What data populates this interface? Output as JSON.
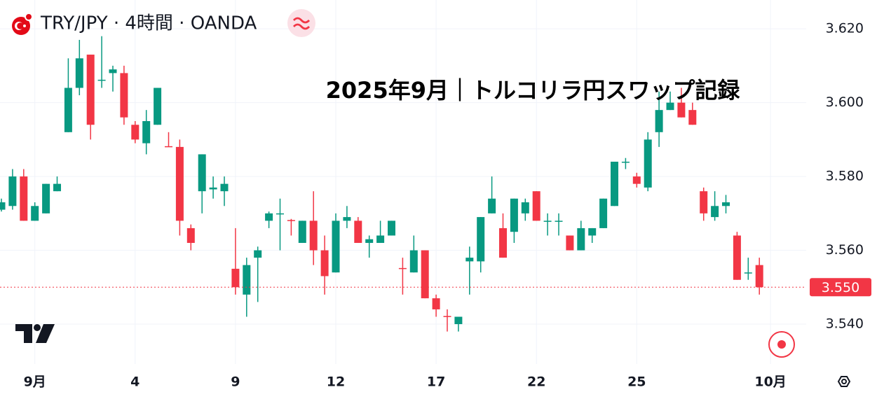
{
  "chart_data": {
    "type": "candlestick",
    "title": "TRY/JPY · 4時間 · OANDA",
    "annotation": "2025年9月｜トルコリラ円スワップ記録",
    "categories": [
      null,
      null,
      null,
      "9月",
      null,
      null,
      null,
      null,
      null,
      null,
      null,
      null,
      "4",
      null,
      null,
      null,
      null,
      null,
      null,
      null,
      null,
      "9",
      null,
      null,
      null,
      null,
      null,
      null,
      null,
      null,
      "12",
      null,
      null,
      null,
      null,
      null,
      null,
      null,
      null,
      "17",
      null,
      null,
      null,
      null,
      null,
      null,
      null,
      null,
      "22",
      null,
      null,
      null,
      null,
      null,
      null,
      null,
      null,
      "25",
      null,
      null,
      null,
      null,
      null,
      null,
      null,
      null,
      null,
      null,
      null,
      "10月"
    ],
    "open": [
      3.571,
      3.572,
      3.58,
      3.568,
      3.57,
      3.576,
      3.592,
      3.604,
      3.613,
      3.606,
      3.608,
      3.608,
      3.594,
      3.589,
      3.594,
      3.5882,
      3.588,
      3.566,
      3.576,
      3.5765,
      3.576,
      3.555,
      3.548,
      3.558,
      3.568,
      3.5699,
      3.5682,
      3.562,
      3.568,
      3.56,
      3.554,
      3.568,
      3.568,
      3.562,
      3.562,
      3.564,
      3.5552,
      3.554,
      3.56,
      3.547,
      3.5422,
      3.54,
      3.557,
      3.557,
      3.57,
      3.566,
      3.565,
      3.57,
      3.576,
      3.5678,
      3.5678,
      3.564,
      3.56,
      3.564,
      3.566,
      3.572,
      3.5838,
      3.58,
      3.577,
      3.592,
      3.598,
      3.6,
      3.598,
      3.576,
      3.569,
      3.572,
      3.564,
      3.5538,
      3.556,
      null
    ],
    "high": [
      3.574,
      3.582,
      3.582,
      3.573,
      3.578,
      3.58,
      3.612,
      3.617,
      3.613,
      3.618,
      3.61,
      3.61,
      3.595,
      3.598,
      3.604,
      3.592,
      3.59,
      3.567,
      3.586,
      3.58,
      3.58,
      3.566,
      3.558,
      3.561,
      3.5705,
      3.574,
      3.5685,
      3.568,
      3.576,
      3.564,
      3.57,
      3.572,
      3.569,
      3.564,
      3.568,
      3.568,
      3.558,
      3.564,
      3.56,
      3.548,
      3.544,
      3.542,
      3.561,
      3.569,
      3.58,
      3.57,
      3.574,
      3.574,
      3.576,
      3.57,
      3.57,
      3.564,
      3.568,
      3.566,
      3.574,
      3.584,
      3.585,
      3.581,
      3.592,
      3.603,
      3.603,
      3.604,
      3.6,
      3.577,
      3.576,
      3.575,
      3.565,
      3.558,
      3.558,
      null
    ],
    "low": [
      3.5705,
      3.571,
      3.568,
      3.568,
      3.57,
      3.576,
      3.592,
      3.602,
      3.59,
      3.604,
      3.603,
      3.594,
      3.589,
      3.586,
      3.594,
      3.588,
      3.564,
      3.56,
      3.57,
      3.574,
      3.572,
      3.548,
      3.542,
      3.546,
      3.566,
      3.56,
      3.564,
      3.562,
      3.556,
      3.548,
      3.554,
      3.566,
      3.562,
      3.558,
      3.562,
      3.564,
      3.548,
      3.554,
      3.547,
      3.542,
      3.538,
      3.538,
      3.548,
      3.554,
      3.57,
      3.558,
      3.562,
      3.568,
      3.568,
      3.564,
      3.564,
      3.56,
      3.56,
      3.562,
      3.566,
      3.572,
      3.582,
      3.577,
      3.576,
      3.588,
      3.598,
      3.596,
      3.594,
      3.568,
      3.568,
      3.57,
      3.552,
      3.552,
      3.548,
      null
    ],
    "close": [
      3.573,
      3.58,
      3.568,
      3.572,
      3.578,
      3.578,
      3.604,
      3.612,
      3.594,
      3.6062,
      3.609,
      3.596,
      3.59,
      3.595,
      3.604,
      3.588,
      3.568,
      3.562,
      3.586,
      3.577,
      3.578,
      3.55,
      3.556,
      3.56,
      3.57,
      3.57,
      3.568,
      3.568,
      3.56,
      3.553,
      3.568,
      3.569,
      3.562,
      3.563,
      3.564,
      3.568,
      3.555,
      3.56,
      3.547,
      3.544,
      3.542,
      3.542,
      3.558,
      3.569,
      3.574,
      3.558,
      3.574,
      3.573,
      3.568,
      3.568,
      3.568,
      3.56,
      3.566,
      3.566,
      3.574,
      3.584,
      3.584,
      3.578,
      3.59,
      3.598,
      3.6,
      3.596,
      3.594,
      3.57,
      3.572,
      3.573,
      3.552,
      3.554,
      3.55,
      null
    ],
    "up_color": "#089981",
    "down_color": "#f23645",
    "ylim": [
      3.5292,
      3.6278
    ],
    "yticks": [
      {
        "value": 3.54,
        "label": "3.540"
      },
      {
        "value": 3.56,
        "label": "3.560"
      },
      {
        "value": 3.58,
        "label": "3.580"
      },
      {
        "value": 3.6,
        "label": "3.600"
      },
      {
        "value": 3.62,
        "label": "3.620"
      }
    ],
    "last_price": {
      "value": 3.55,
      "label": "3.550"
    },
    "grid": true
  }
}
